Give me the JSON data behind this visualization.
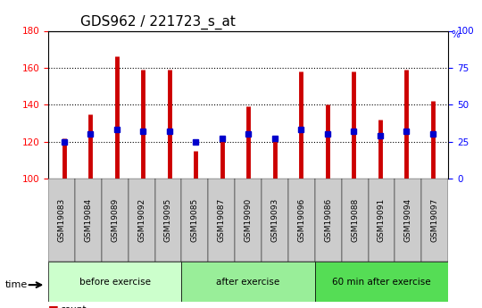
{
  "title": "GDS962 / 221723_s_at",
  "samples": [
    "GSM19083",
    "GSM19084",
    "GSM19089",
    "GSM19092",
    "GSM19095",
    "GSM19085",
    "GSM19087",
    "GSM19090",
    "GSM19093",
    "GSM19096",
    "GSM19086",
    "GSM19088",
    "GSM19091",
    "GSM19094",
    "GSM19097"
  ],
  "counts": [
    122,
    135,
    166,
    159,
    159,
    115,
    121,
    139,
    121,
    158,
    140,
    158,
    132,
    159,
    142
  ],
  "percentile": [
    25,
    30,
    33,
    32,
    32,
    25,
    27,
    30,
    27,
    33,
    30,
    32,
    29,
    32,
    30
  ],
  "groups": [
    {
      "label": "before exercise",
      "start": 0,
      "end": 5,
      "color": "#ccffcc"
    },
    {
      "label": "after exercise",
      "start": 5,
      "end": 10,
      "color": "#99ee99"
    },
    {
      "label": "60 min after exercise",
      "start": 10,
      "end": 15,
      "color": "#55dd55"
    }
  ],
  "ylim": [
    100,
    180
  ],
  "yticks_left": [
    100,
    120,
    140,
    160,
    180
  ],
  "yticks_right": [
    0,
    25,
    50,
    75,
    100
  ],
  "bar_color": "#cc0000",
  "dot_color": "#0000cc",
  "bar_bottom": 100,
  "background_color": "#ffffff",
  "plot_bg": "#ffffff",
  "grid_color": "#000000",
  "title_fontsize": 11,
  "tick_fontsize": 7.5,
  "label_fontsize": 8
}
